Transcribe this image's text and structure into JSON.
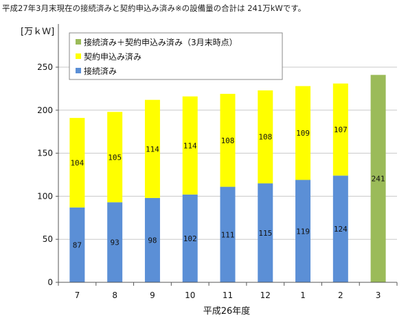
{
  "note": "平成27年3月末現在の接続済みと契約申込み済み※の設備量の合計は 241万kWです。",
  "chart_data": {
    "type": "bar",
    "stacked": true,
    "categories": [
      "7",
      "8",
      "9",
      "10",
      "11",
      "12",
      "1",
      "2",
      "3"
    ],
    "series": [
      {
        "name": "接続済み",
        "color": "#5b8fd6",
        "values": [
          87,
          93,
          98,
          102,
          111,
          115,
          119,
          124,
          null
        ]
      },
      {
        "name": "契約申込み済み",
        "color": "#ffff00",
        "values": [
          104,
          105,
          114,
          114,
          108,
          108,
          109,
          107,
          null
        ]
      },
      {
        "name": "接続済み＋契約申込み済み（3月末時点）",
        "color": "#9bbb59",
        "values": [
          null,
          null,
          null,
          null,
          null,
          null,
          null,
          null,
          241
        ]
      }
    ],
    "ylabel": "[万ｋＷ]",
    "xlabel": "平成26年度",
    "yticks": [
      0,
      50,
      100,
      150,
      200,
      250
    ],
    "ylim": [
      0,
      250
    ],
    "grid": true,
    "legend_position": "top-left"
  }
}
